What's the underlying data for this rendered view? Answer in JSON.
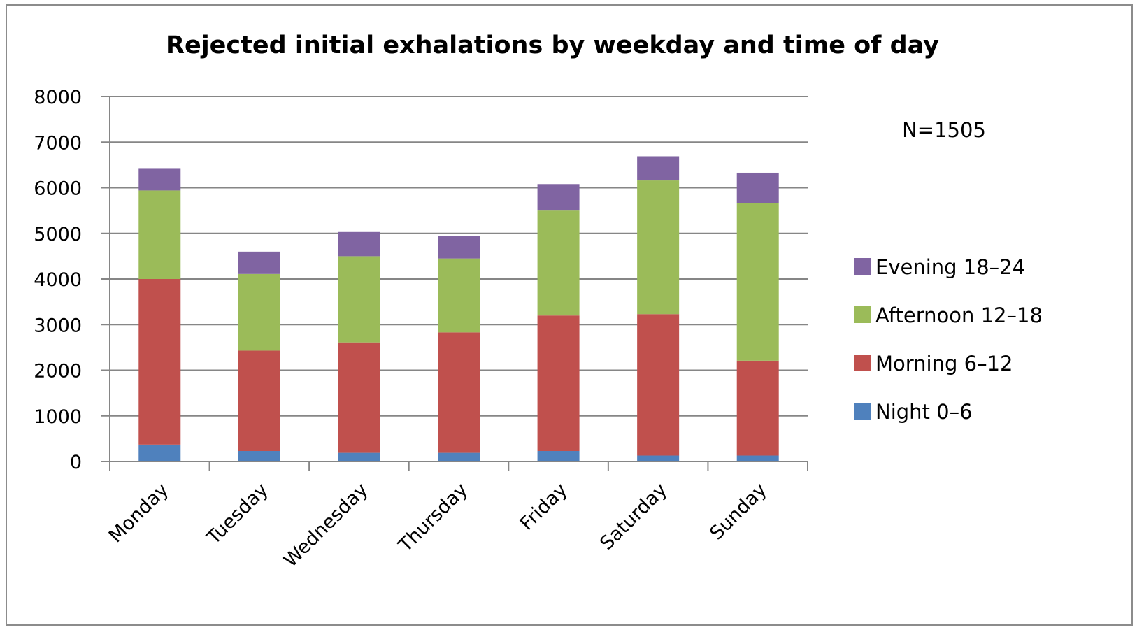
{
  "chart_data": {
    "type": "bar",
    "stacked": true,
    "title": "Rejected initial exhalations by weekday and time of day",
    "annotation": "N=1505",
    "categories": [
      "Monday",
      "Tuesday",
      "Wednesday",
      "Thursday",
      "Friday",
      "Saturday",
      "Sunday"
    ],
    "series": [
      {
        "name": "Night 0–6",
        "color": "#4f81bd",
        "values": [
          370,
          230,
          190,
          190,
          230,
          130,
          130
        ]
      },
      {
        "name": "Morning 6–12",
        "color": "#c0504d",
        "values": [
          3630,
          2200,
          2420,
          2640,
          2970,
          3100,
          2080
        ]
      },
      {
        "name": "Afternoon 12–18",
        "color": "#9bbb59",
        "values": [
          1940,
          1680,
          1890,
          1620,
          2300,
          2930,
          3460
        ]
      },
      {
        "name": "Evening 18–24",
        "color": "#8064a2",
        "values": [
          490,
          490,
          530,
          490,
          580,
          530,
          660
        ]
      }
    ],
    "yticks": [
      0,
      1000,
      2000,
      3000,
      4000,
      5000,
      6000,
      7000,
      8000
    ],
    "ylim": [
      0,
      8000
    ],
    "xlabel": "",
    "ylabel": "",
    "grid": true,
    "legend_position": "right",
    "legend_order": "reverse"
  }
}
